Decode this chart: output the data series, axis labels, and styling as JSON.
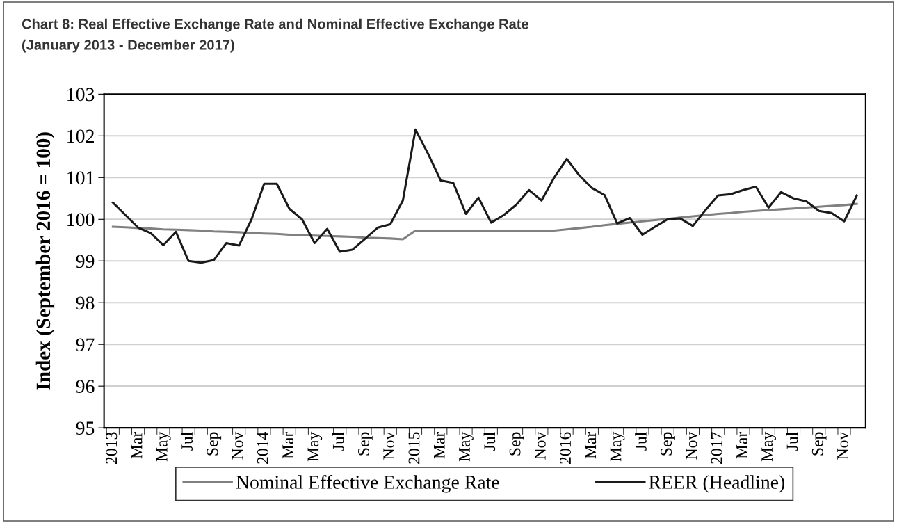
{
  "chart_data": {
    "type": "line",
    "title": "Chart 8: Real Effective Exchange Rate and Nominal Effective Exchange Rate",
    "subtitle": "(January 2013 - December 2017)",
    "ylabel": "Index (September 2016 = 100)",
    "categories": [
      "2013",
      null,
      "Mar",
      null,
      "May",
      null,
      "Jul",
      null,
      "Sep",
      null,
      "Nov",
      null,
      "2014",
      null,
      "Mar",
      null,
      "May",
      null,
      "Jul",
      null,
      "Sep",
      null,
      "Nov",
      null,
      "2015",
      null,
      "Mar",
      null,
      "May",
      null,
      "Jul",
      null,
      "Sep",
      null,
      "Nov",
      null,
      "2016",
      null,
      "Mar",
      null,
      "May",
      null,
      "Jul",
      null,
      "Sep",
      null,
      "Nov",
      null,
      "2017",
      null,
      "Mar",
      null,
      "May",
      null,
      "Jul",
      null,
      "Sep",
      null,
      "Nov",
      null
    ],
    "series": [
      {
        "name": "Nominal Effective Exchange Rate",
        "color": "#808080",
        "values": [
          99.82,
          99.81,
          99.79,
          99.78,
          99.76,
          99.75,
          99.74,
          99.73,
          99.71,
          99.7,
          99.69,
          99.67,
          99.66,
          99.65,
          99.63,
          99.62,
          99.61,
          99.6,
          99.59,
          99.58,
          99.56,
          99.55,
          99.54,
          99.52,
          99.73,
          99.73,
          99.73,
          99.73,
          99.73,
          99.73,
          99.73,
          99.73,
          99.73,
          99.73,
          99.73,
          99.73,
          99.76,
          99.79,
          99.82,
          99.86,
          99.89,
          99.92,
          99.95,
          99.98,
          100.01,
          100.04,
          100.07,
          100.1,
          100.13,
          100.15,
          100.18,
          100.2,
          100.22,
          100.24,
          100.26,
          100.28,
          100.3,
          100.32,
          100.34,
          100.37
        ]
      },
      {
        "name": "REER (Headline)",
        "color": "#1a1a1a",
        "values": [
          100.4,
          100.1,
          99.8,
          99.67,
          99.38,
          99.7,
          99.0,
          98.96,
          99.02,
          99.43,
          99.37,
          100.0,
          100.85,
          100.85,
          100.25,
          100.0,
          99.43,
          99.77,
          99.22,
          99.27,
          99.53,
          99.8,
          99.88,
          100.45,
          102.15,
          101.57,
          100.93,
          100.87,
          100.13,
          100.52,
          99.92,
          100.1,
          100.35,
          100.7,
          100.45,
          101.0,
          101.45,
          101.05,
          100.75,
          100.58,
          99.9,
          100.03,
          99.63,
          99.82,
          100.0,
          100.02,
          99.84,
          100.22,
          100.57,
          100.6,
          100.7,
          100.78,
          100.28,
          100.65,
          100.5,
          100.43,
          100.2,
          100.15,
          99.95,
          100.57
        ]
      }
    ],
    "ylim": [
      95,
      103
    ],
    "yticks": [
      95,
      96,
      97,
      98,
      99,
      100,
      101,
      102,
      103
    ],
    "grid": "y",
    "legend": "bottom",
    "marker": "none",
    "line_style": "solid"
  }
}
